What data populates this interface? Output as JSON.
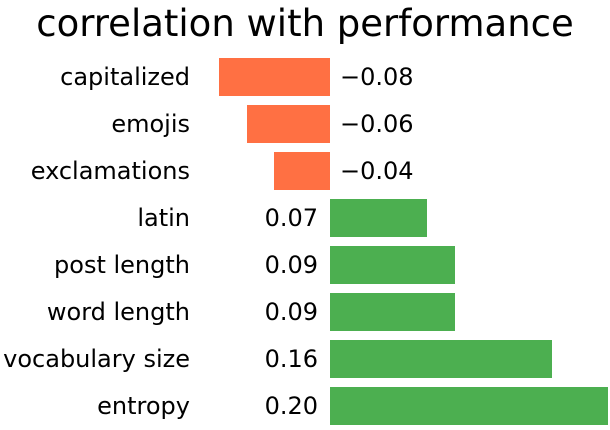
{
  "chart_data": {
    "type": "bar",
    "orientation": "horizontal",
    "title": "correlation with performance",
    "categories": [
      "capitalized",
      "emojis",
      "exclamations",
      "latin",
      "post length",
      "word length",
      "vocabulary size",
      "entropy"
    ],
    "values": [
      -0.08,
      -0.06,
      -0.04,
      0.07,
      0.09,
      0.09,
      0.16,
      0.2
    ],
    "value_labels": [
      "−0.08",
      "−0.06",
      "−0.04",
      "0.07",
      "0.09",
      "0.09",
      "0.16",
      "0.20"
    ],
    "colors": {
      "positive": "#4caf50",
      "negative": "#ff7043"
    },
    "xlabel": "",
    "ylabel": "",
    "xlim": [
      -0.24,
      0.2
    ],
    "axes_visible": false,
    "grid": false,
    "legend": "none",
    "value_label_side": "opposite side of zero axis from bar"
  }
}
